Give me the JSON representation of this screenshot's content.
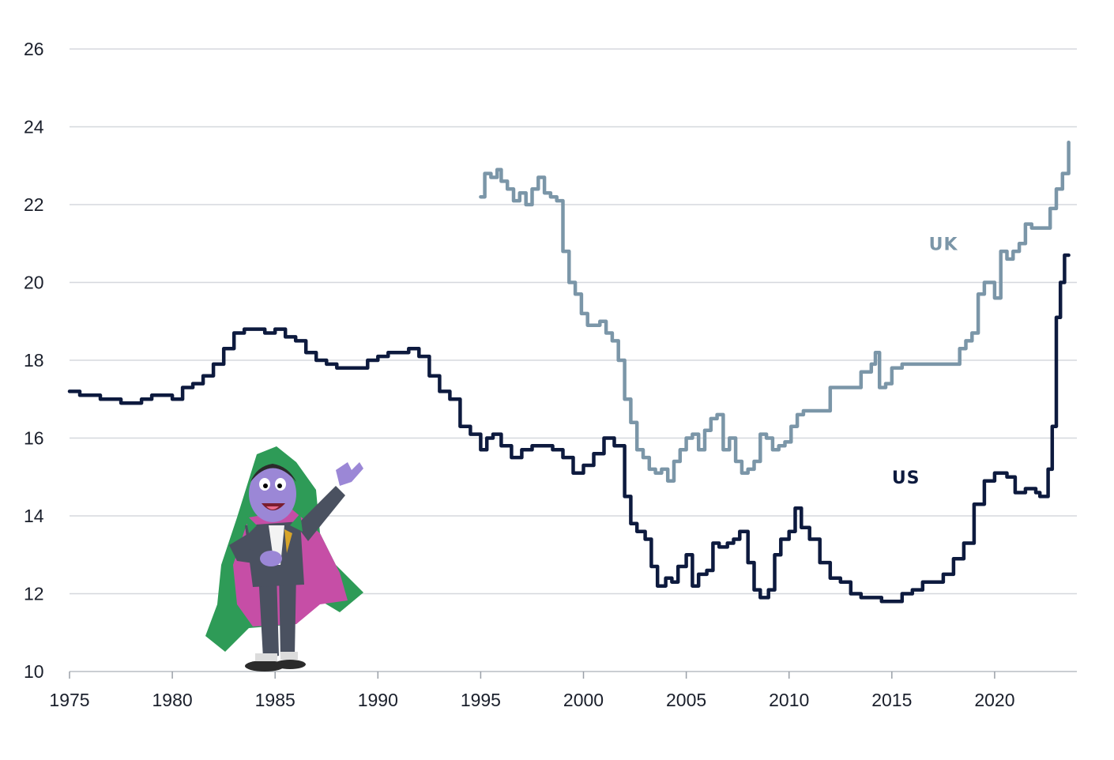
{
  "chart_data": {
    "type": "line",
    "title": "",
    "xlabel": "",
    "ylabel": "",
    "xlim": [
      1975,
      2024
    ],
    "ylim": [
      10,
      26
    ],
    "x_ticks": [
      "1975",
      "1980",
      "1985",
      "1990",
      "1995",
      "2000",
      "2005",
      "2010",
      "2015",
      "2020"
    ],
    "y_ticks": [
      "10",
      "12",
      "14",
      "16",
      "18",
      "20",
      "22",
      "24",
      "26"
    ],
    "grid": "horizontal",
    "legend": "direct labels",
    "series": [
      {
        "name": "UK",
        "color": "#7b96a8",
        "x": [
          1995.0,
          1995.2,
          1995.5,
          1995.8,
          1996.0,
          1996.3,
          1996.6,
          1996.9,
          1997.2,
          1997.5,
          1997.8,
          1998.1,
          1998.4,
          1998.7,
          1999.0,
          1999.3,
          1999.6,
          1999.9,
          2000.2,
          2000.5,
          2000.8,
          2001.1,
          2001.4,
          2001.7,
          2002.0,
          2002.3,
          2002.6,
          2002.9,
          2003.2,
          2003.5,
          2003.8,
          2004.1,
          2004.4,
          2004.7,
          2005.0,
          2005.3,
          2005.6,
          2005.9,
          2006.2,
          2006.5,
          2006.8,
          2007.1,
          2007.4,
          2007.7,
          2008.0,
          2008.3,
          2008.6,
          2008.9,
          2009.2,
          2009.5,
          2009.8,
          2010.1,
          2010.4,
          2010.7,
          2011.0,
          2011.5,
          2012.0,
          2012.5,
          2013.0,
          2013.5,
          2014.0,
          2014.2,
          2014.4,
          2014.7,
          2015.0,
          2015.5,
          2016.0,
          2016.5,
          2017.0,
          2017.5,
          2018.0,
          2018.3,
          2018.6,
          2018.9,
          2019.2,
          2019.5,
          2019.8,
          2020.0,
          2020.3,
          2020.6,
          2020.9,
          2021.2,
          2021.5,
          2021.8,
          2022.1,
          2022.4,
          2022.7,
          2023.0,
          2023.3,
          2023.6
        ],
        "values": [
          22.2,
          22.8,
          22.7,
          22.9,
          22.6,
          22.4,
          22.1,
          22.3,
          22.0,
          22.4,
          22.7,
          22.3,
          22.2,
          22.1,
          20.8,
          20.0,
          19.7,
          19.2,
          18.9,
          18.9,
          19.0,
          18.7,
          18.5,
          18.0,
          17.0,
          16.4,
          15.7,
          15.5,
          15.2,
          15.1,
          15.2,
          14.9,
          15.4,
          15.7,
          16.0,
          16.1,
          15.7,
          16.2,
          16.5,
          16.6,
          15.7,
          16.0,
          15.4,
          15.1,
          15.2,
          15.4,
          16.1,
          16.0,
          15.7,
          15.8,
          15.9,
          16.3,
          16.6,
          16.7,
          16.7,
          16.7,
          17.3,
          17.3,
          17.3,
          17.7,
          17.9,
          18.2,
          17.3,
          17.4,
          17.8,
          17.9,
          17.9,
          17.9,
          17.9,
          17.9,
          17.9,
          18.3,
          18.5,
          18.7,
          19.7,
          20.0,
          20.0,
          19.6,
          20.8,
          20.6,
          20.8,
          21.0,
          21.5,
          21.4,
          21.4,
          21.4,
          21.9,
          22.4,
          22.8,
          23.6
        ]
      },
      {
        "name": "US",
        "color": "#0d1a3e",
        "x": [
          1975.0,
          1975.5,
          1976.0,
          1976.5,
          1977.0,
          1977.5,
          1978.0,
          1978.5,
          1979.0,
          1979.5,
          1980.0,
          1980.5,
          1981.0,
          1981.5,
          1982.0,
          1982.5,
          1983.0,
          1983.5,
          1984.0,
          1984.5,
          1985.0,
          1985.5,
          1986.0,
          1986.5,
          1987.0,
          1987.5,
          1988.0,
          1988.5,
          1989.0,
          1989.5,
          1990.0,
          1990.5,
          1991.0,
          1991.5,
          1992.0,
          1992.5,
          1993.0,
          1993.5,
          1994.0,
          1994.5,
          1995.0,
          1995.3,
          1995.6,
          1996.0,
          1996.5,
          1997.0,
          1997.5,
          1998.0,
          1998.5,
          1999.0,
          1999.5,
          2000.0,
          2000.5,
          2001.0,
          2001.5,
          2002.0,
          2002.3,
          2002.6,
          2003.0,
          2003.3,
          2003.6,
          2004.0,
          2004.3,
          2004.6,
          2005.0,
          2005.3,
          2005.6,
          2006.0,
          2006.3,
          2006.6,
          2007.0,
          2007.3,
          2007.6,
          2008.0,
          2008.3,
          2008.6,
          2009.0,
          2009.3,
          2009.6,
          2010.0,
          2010.3,
          2010.6,
          2011.0,
          2011.5,
          2012.0,
          2012.5,
          2013.0,
          2013.5,
          2014.0,
          2014.5,
          2015.0,
          2015.5,
          2016.0,
          2016.5,
          2017.0,
          2017.5,
          2018.0,
          2018.5,
          2019.0,
          2019.5,
          2020.0,
          2020.3,
          2020.6,
          2021.0,
          2021.5,
          2022.0,
          2022.2,
          2022.4,
          2022.6,
          2022.8,
          2023.0,
          2023.2,
          2023.4,
          2023.6
        ],
        "values": [
          17.2,
          17.1,
          17.1,
          17.0,
          17.0,
          16.9,
          16.9,
          17.0,
          17.1,
          17.1,
          17.0,
          17.3,
          17.4,
          17.6,
          17.9,
          18.3,
          18.7,
          18.8,
          18.8,
          18.7,
          18.8,
          18.6,
          18.5,
          18.2,
          18.0,
          17.9,
          17.8,
          17.8,
          17.8,
          18.0,
          18.1,
          18.2,
          18.2,
          18.3,
          18.1,
          17.6,
          17.2,
          17.0,
          16.3,
          16.1,
          15.7,
          16.0,
          16.1,
          15.8,
          15.5,
          15.7,
          15.8,
          15.8,
          15.7,
          15.5,
          15.1,
          15.3,
          15.6,
          16.0,
          15.8,
          14.5,
          13.8,
          13.6,
          13.4,
          12.7,
          12.2,
          12.4,
          12.3,
          12.7,
          13.0,
          12.2,
          12.5,
          12.6,
          13.3,
          13.2,
          13.3,
          13.4,
          13.6,
          12.8,
          12.1,
          11.9,
          12.1,
          13.0,
          13.4,
          13.6,
          14.2,
          13.7,
          13.4,
          12.8,
          12.4,
          12.3,
          12.0,
          11.9,
          11.9,
          11.8,
          11.8,
          12.0,
          12.1,
          12.3,
          12.3,
          12.5,
          12.9,
          13.3,
          14.3,
          14.9,
          15.1,
          15.1,
          15.0,
          14.6,
          14.7,
          14.6,
          14.5,
          14.5,
          15.2,
          16.3,
          19.1,
          20.0,
          20.7,
          20.7
        ]
      }
    ],
    "annotations": [
      {
        "text": "UK",
        "x": 2016.8,
        "y": 21.0,
        "color": "#7b96a8"
      },
      {
        "text": "US",
        "x": 2015.0,
        "y": 15.0,
        "color": "#0d1a3e"
      }
    ]
  },
  "illustration": {
    "icon": "cartoon-vampire-count-icon",
    "colors": {
      "skin": "#9b87d6",
      "cape_outer": "#2e9b57",
      "cape_inner": "#c64ea6",
      "suit": "#4a5160"
    }
  }
}
